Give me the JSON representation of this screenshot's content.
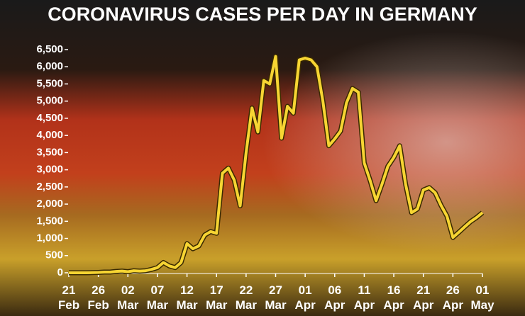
{
  "chart_data": {
    "type": "line",
    "title": "CORONAVIRUS CASES PER DAY IN GERMANY",
    "categories": [
      "21 Feb",
      null,
      null,
      null,
      null,
      "26 Feb",
      null,
      null,
      null,
      null,
      "02 Mar",
      null,
      null,
      null,
      null,
      "07 Mar",
      null,
      null,
      null,
      null,
      "12 Mar",
      null,
      null,
      null,
      null,
      "17 Mar",
      null,
      null,
      null,
      null,
      "22 Mar",
      null,
      null,
      null,
      null,
      "27 Mar",
      null,
      null,
      null,
      null,
      "01 Apr",
      null,
      null,
      null,
      null,
      "06 Apr",
      null,
      null,
      null,
      null,
      "11 Apr",
      null,
      null,
      null,
      null,
      "16 Apr",
      null,
      null,
      null,
      null,
      "21 Apr",
      null,
      null,
      null,
      null,
      "26 Apr",
      null,
      null,
      null,
      null,
      "01 May"
    ],
    "values": [
      0,
      0,
      0,
      0,
      5,
      10,
      20,
      20,
      40,
      50,
      30,
      60,
      50,
      60,
      100,
      150,
      300,
      200,
      150,
      300,
      850,
      700,
      780,
      1100,
      1200,
      1150,
      2900,
      3050,
      2700,
      1950,
      3500,
      4800,
      4100,
      5600,
      5500,
      6300,
      3920,
      4850,
      4650,
      6200,
      6250,
      6200,
      6000,
      5000,
      3700,
      3900,
      4130,
      4950,
      5370,
      5260,
      3200,
      2680,
      2100,
      2580,
      3100,
      3360,
      3700,
      2580,
      1750,
      1860,
      2410,
      2480,
      2330,
      1960,
      1650,
      1030,
      1180,
      1340,
      1490,
      1610,
      1750
    ],
    "color": "#f7d533",
    "ylim": [
      0,
      6500
    ],
    "yticks": [
      0,
      {
        "value": 500,
        "label": "500"
      },
      {
        "value": 1000,
        "label": "1,000"
      },
      {
        "value": 1500,
        "label": "1,500"
      },
      {
        "value": 2000,
        "label": "2,000"
      },
      {
        "value": 2500,
        "label": "2,500"
      },
      {
        "value": 3000,
        "label": "3,000"
      },
      {
        "value": 3500,
        "label": "3,500"
      },
      {
        "value": 4000,
        "label": "4,000"
      },
      {
        "value": 4500,
        "label": "4,500"
      },
      {
        "value": 5000,
        "label": "5,000"
      },
      {
        "value": 5500,
        "label": "5,500"
      },
      {
        "value": 6000,
        "label": "6,000"
      },
      {
        "value": 6500,
        "label": "6,500"
      }
    ]
  }
}
